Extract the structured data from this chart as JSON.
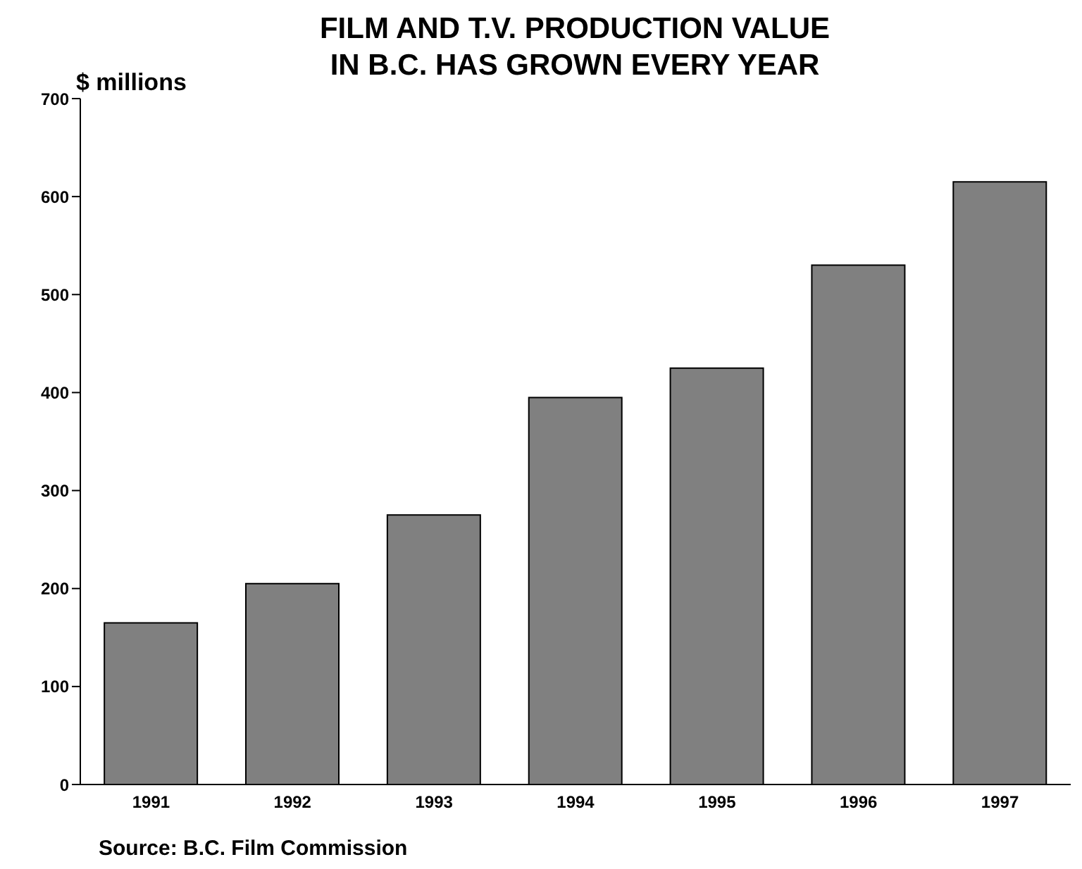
{
  "chart_data": {
    "type": "bar",
    "title": "FILM AND T.V. PRODUCTION VALUE\nIN B.C. HAS GROWN EVERY YEAR",
    "ylabel": "$ millions",
    "categories": [
      "1991",
      "1992",
      "1993",
      "1994",
      "1995",
      "1996",
      "1997"
    ],
    "values": [
      165,
      205,
      275,
      395,
      425,
      530,
      615
    ],
    "color": "#808080",
    "ylim": [
      0,
      700
    ],
    "yticks": [
      0,
      100,
      200,
      300,
      400,
      500,
      600,
      700
    ],
    "grid": false,
    "annotations": [
      "Source: B.C. Film Commission"
    ]
  }
}
